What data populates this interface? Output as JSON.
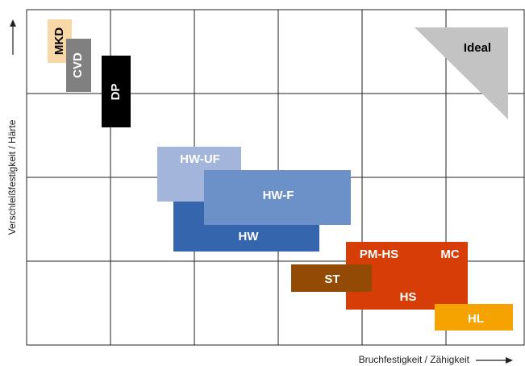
{
  "axes": {
    "x_label": "Bruchfestigkeit / Zähigkeit",
    "y_label": "Verschleißfestigkeit / Härte"
  },
  "nodes": [
    {
      "label": "MKD"
    },
    {
      "label": "CVD"
    },
    {
      "label": "DP"
    },
    {
      "label": "Ideal"
    },
    {
      "label": "HW-UF"
    },
    {
      "label": "HW"
    },
    {
      "label": "HW-F"
    },
    {
      "label": "PM-HS"
    },
    {
      "label": "MC"
    },
    {
      "label": "HS"
    },
    {
      "label": "ST"
    },
    {
      "label": "HL"
    }
  ]
}
